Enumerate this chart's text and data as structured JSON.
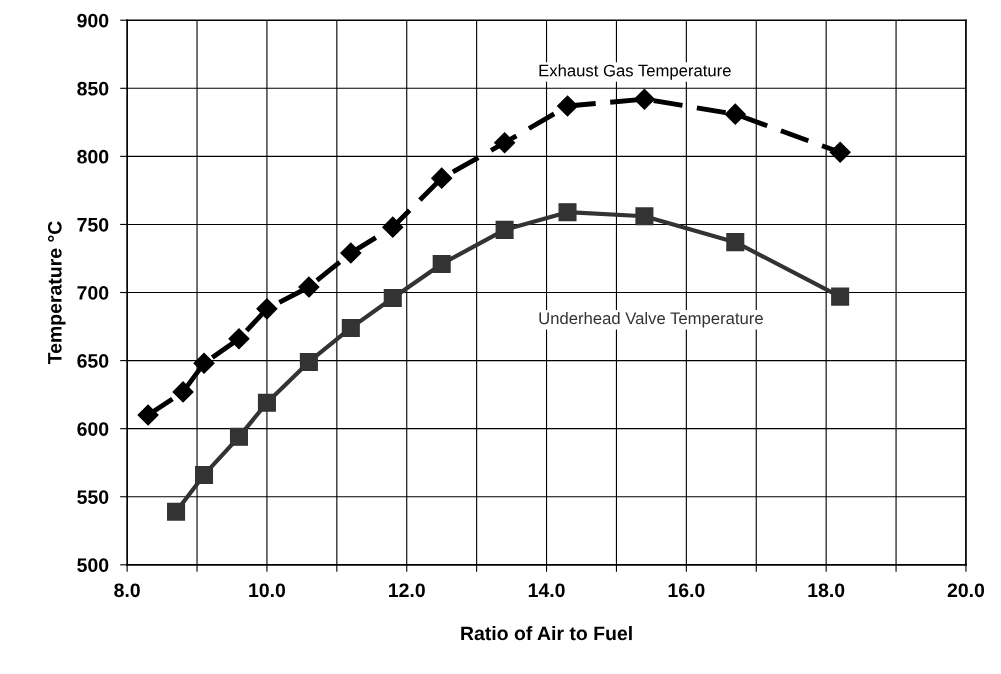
{
  "chart_data": {
    "type": "line",
    "xlabel": "Ratio of Air to Fuel",
    "ylabel": "Temperature °C",
    "xlim": [
      8.0,
      20.0
    ],
    "ylim": [
      500,
      900
    ],
    "xticks": [
      {
        "value": 8,
        "label": "8.0"
      },
      {
        "value": 9,
        "label": null
      },
      {
        "value": 10,
        "label": "10.0"
      },
      {
        "value": 11,
        "label": null
      },
      {
        "value": 12,
        "label": "12.0"
      },
      {
        "value": 13,
        "label": null
      },
      {
        "value": 14,
        "label": "14.0"
      },
      {
        "value": 15,
        "label": null
      },
      {
        "value": 16,
        "label": "16.0"
      },
      {
        "value": 17,
        "label": null
      },
      {
        "value": 18,
        "label": "18.0"
      },
      {
        "value": 19,
        "label": null
      },
      {
        "value": 20,
        "label": "20.0"
      }
    ],
    "yticks": [
      500,
      550,
      600,
      650,
      700,
      750,
      800,
      850,
      900
    ],
    "grid": true,
    "legend": false,
    "series": [
      {
        "name": "Exhaust Gas Temperature",
        "color": "#000000",
        "marker": "diamond",
        "line_style": "dashed",
        "x": [
          8.3,
          8.8,
          9.1,
          9.6,
          10.0,
          10.6,
          11.2,
          11.8,
          12.5,
          13.4,
          14.3,
          15.4,
          16.7,
          18.2
        ],
        "values": [
          610,
          627,
          648,
          666,
          688,
          704,
          729,
          748,
          784,
          810,
          837,
          842,
          831,
          803
        ]
      },
      {
        "name": "Underhead Valve Temperature",
        "color": "#333333",
        "marker": "square",
        "line_style": "solid",
        "x": [
          8.7,
          9.1,
          9.6,
          10.0,
          10.6,
          11.2,
          11.8,
          12.5,
          13.4,
          14.3,
          15.4,
          16.7,
          18.2
        ],
        "values": [
          539,
          566,
          594,
          619,
          649,
          674,
          696,
          721,
          746,
          759,
          756,
          737,
          697
        ]
      }
    ]
  }
}
